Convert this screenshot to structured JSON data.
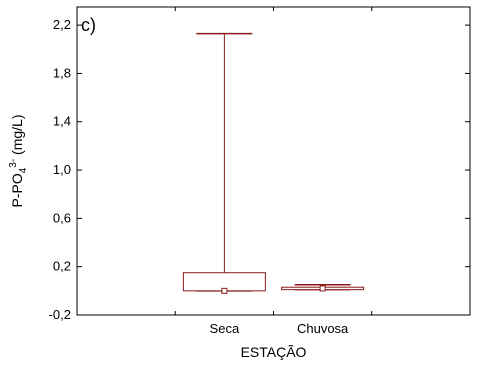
{
  "chart_data": {
    "type": "box",
    "panel_label": "c)",
    "xlabel": "ESTAÇÃO",
    "ylabel": {
      "main": "P-PO",
      "sub": "4",
      "sup": "3-",
      "tail": " (mg/L)"
    },
    "ylim": [
      -0.2,
      2.35
    ],
    "yticks": [
      -0.2,
      0.2,
      0.6,
      1.0,
      1.4,
      1.8,
      2.2
    ],
    "ytick_labels": [
      "-0,2",
      "0,2",
      "0,6",
      "1,0",
      "1,4",
      "1,8",
      "2,2"
    ],
    "categories": [
      "Seca",
      "Chuvosa"
    ],
    "boxes": [
      {
        "category": "Seca",
        "min": 0.0,
        "q1": 0.0,
        "median": 0.0,
        "q3": 0.15,
        "max": 2.13
      },
      {
        "category": "Chuvosa",
        "min": 0.01,
        "q1": 0.01,
        "median": 0.02,
        "q3": 0.03,
        "max": 0.05
      }
    ],
    "grid": false,
    "colors": {
      "box": "#8b1a1a",
      "axis": "#000000"
    }
  }
}
